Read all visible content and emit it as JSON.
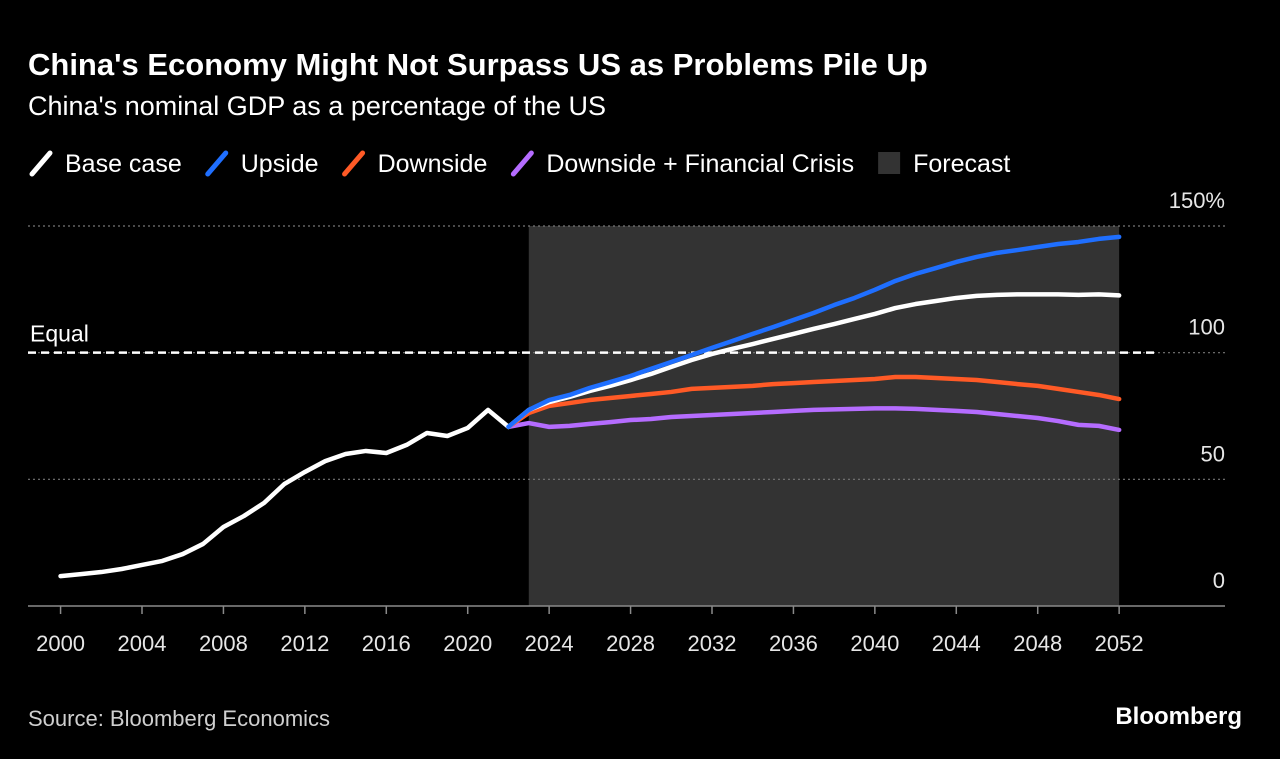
{
  "chart_data": {
    "type": "line",
    "title": "China's Economy Might Not Surpass US as Problems Pile Up",
    "subtitle": "China's nominal GDP as a percentage of the US",
    "x": [
      2000,
      2001,
      2002,
      2003,
      2004,
      2005,
      2006,
      2007,
      2008,
      2009,
      2010,
      2011,
      2012,
      2013,
      2014,
      2015,
      2016,
      2017,
      2018,
      2019,
      2020,
      2021,
      2022,
      2023,
      2024,
      2025,
      2026,
      2027,
      2028,
      2029,
      2030,
      2031,
      2032,
      2033,
      2034,
      2035,
      2036,
      2037,
      2038,
      2039,
      2040,
      2041,
      2042,
      2043,
      2044,
      2045,
      2046,
      2047,
      2048,
      2049,
      2050,
      2051,
      2052
    ],
    "series": [
      {
        "name": "Base case",
        "color": "#ffffff",
        "values": [
          11.8,
          12.6,
          13.4,
          14.6,
          16.2,
          17.8,
          20.5,
          24.5,
          31.2,
          35.5,
          40.7,
          48.2,
          52.9,
          57.2,
          60,
          61.2,
          60.4,
          63.6,
          68.3,
          67.1,
          70.3,
          77.4,
          70.7,
          77.4,
          80.5,
          82.5,
          84.9,
          86.9,
          89.2,
          91.6,
          94.4,
          97.1,
          99.5,
          101.5,
          103.4,
          105.4,
          107.4,
          109.4,
          111.3,
          113.3,
          115.3,
          117.6,
          119.2,
          120.4,
          121.6,
          122.4,
          122.8,
          123,
          123,
          123,
          122.8,
          123,
          122.6
        ]
      },
      {
        "name": "Upside",
        "color": "#1f6fff",
        "values": [
          null,
          null,
          null,
          null,
          null,
          null,
          null,
          null,
          null,
          null,
          null,
          null,
          null,
          null,
          null,
          null,
          null,
          null,
          null,
          null,
          null,
          null,
          70.7,
          77.4,
          81.3,
          83.3,
          86.1,
          88.4,
          90.8,
          93.6,
          96.3,
          99.1,
          101.9,
          104.6,
          107.4,
          110.1,
          112.9,
          115.7,
          118.8,
          121.6,
          124.8,
          128.3,
          131.1,
          133.4,
          135.8,
          137.8,
          139.4,
          140.5,
          141.7,
          142.9,
          143.7,
          144.9,
          145.7
        ]
      },
      {
        "name": "Downside",
        "color": "#ff5a26",
        "values": [
          null,
          null,
          null,
          null,
          null,
          null,
          null,
          null,
          null,
          null,
          null,
          null,
          null,
          null,
          null,
          null,
          null,
          null,
          null,
          null,
          null,
          null,
          70.7,
          76.2,
          79,
          80.1,
          81.3,
          82.1,
          82.9,
          83.7,
          84.5,
          85.7,
          86.1,
          86.5,
          86.9,
          87.6,
          88,
          88.4,
          88.8,
          89.2,
          89.6,
          90.4,
          90.4,
          90,
          89.6,
          89.2,
          88.4,
          87.6,
          86.9,
          85.7,
          84.5,
          83.3,
          81.7
        ]
      },
      {
        "name": "Downside + Financial Crisis",
        "color": "#b56cff",
        "values": [
          null,
          null,
          null,
          null,
          null,
          null,
          null,
          null,
          null,
          null,
          null,
          null,
          null,
          null,
          null,
          null,
          null,
          null,
          null,
          null,
          null,
          null,
          70.7,
          72.2,
          70.7,
          71.1,
          71.9,
          72.6,
          73.4,
          73.8,
          74.6,
          75,
          75.4,
          75.8,
          76.2,
          76.6,
          77,
          77.4,
          77.6,
          77.8,
          78,
          78,
          77.8,
          77.4,
          77,
          76.6,
          75.8,
          75,
          74.2,
          73,
          71.5,
          71.1,
          69.5
        ]
      }
    ],
    "forecast": {
      "label": "Forecast",
      "range": [
        2023,
        2052
      ],
      "color": "#333333"
    },
    "reference_line": {
      "value": 100,
      "label": "Equal"
    },
    "xlim": [
      1998.4,
      2057.2
    ],
    "xticks": [
      2000,
      2004,
      2008,
      2012,
      2016,
      2020,
      2024,
      2028,
      2032,
      2036,
      2040,
      2044,
      2048,
      2052
    ],
    "ylim": [
      0,
      150
    ],
    "yticks": [
      0,
      50,
      100,
      {
        "value": 150,
        "label": "150%"
      }
    ],
    "grid": true,
    "legend": "top",
    "source": "Source: Bloomberg Economics",
    "brand": "Bloomberg"
  }
}
